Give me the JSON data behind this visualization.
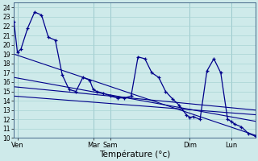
{
  "xlabel": "Température (°c)",
  "xlim": [
    0,
    35
  ],
  "ylim": [
    10,
    24.5
  ],
  "yticks": [
    10,
    11,
    12,
    13,
    14,
    15,
    16,
    17,
    18,
    19,
    20,
    21,
    22,
    23,
    24
  ],
  "xtick_positions": [
    0.5,
    11.5,
    14.0,
    25.5,
    31.5
  ],
  "xtick_labels": [
    "Ven",
    "Mar",
    "Sam",
    "Dim",
    "Lun"
  ],
  "vlines": [
    0.5,
    11.5,
    14.0,
    25.5,
    31.5
  ],
  "background_color": "#ceeaea",
  "grid_color": "#a8d4d4",
  "line_color": "#00008b",
  "s1_x": [
    0.0,
    0.5,
    1.0,
    2.0,
    3.0,
    4.0,
    5.0,
    6.0,
    7.0,
    8.0,
    9.0,
    10.0,
    11.0,
    11.5,
    12.0,
    13.0,
    14.0,
    15.0,
    16.0,
    17.0,
    18.0,
    19.0,
    20.0,
    21.0,
    22.0,
    23.0,
    24.0,
    25.0,
    25.5,
    26.0,
    27.0,
    28.0,
    29.0,
    30.0,
    31.0,
    31.5,
    32.0,
    33.0,
    34.0,
    35.0
  ],
  "s1_y": [
    22.5,
    19.2,
    19.5,
    21.8,
    23.5,
    23.2,
    20.8,
    20.5,
    16.8,
    15.2,
    15.0,
    16.5,
    16.2,
    15.2,
    15.0,
    14.8,
    14.5,
    14.3,
    14.3,
    14.5,
    18.7,
    18.5,
    17.0,
    16.5,
    15.0,
    14.2,
    13.5,
    12.5,
    12.2,
    12.3,
    12.0,
    17.2,
    18.5,
    17.0,
    12.0,
    11.8,
    11.5,
    11.2,
    10.5,
    10.2
  ],
  "trend1_x": [
    0.0,
    35.0
  ],
  "trend1_y": [
    19.0,
    10.3
  ],
  "trend2_x": [
    0.0,
    35.0
  ],
  "trend2_y": [
    16.5,
    11.8
  ],
  "trend3_x": [
    0.0,
    35.0
  ],
  "trend3_y": [
    15.5,
    13.0
  ],
  "trend4_x": [
    0.0,
    35.0
  ],
  "trend4_y": [
    14.5,
    12.5
  ]
}
